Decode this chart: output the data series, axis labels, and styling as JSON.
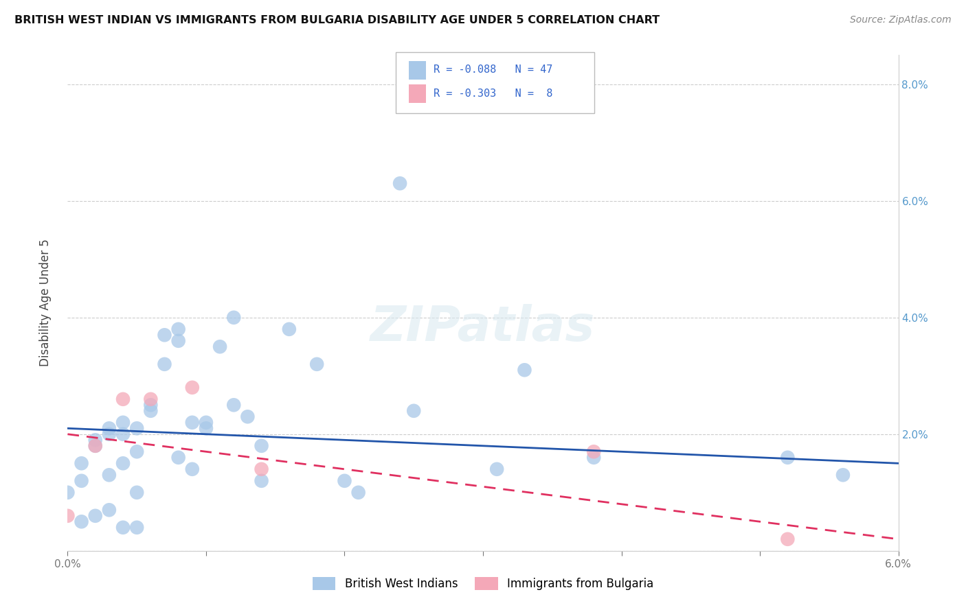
{
  "title": "BRITISH WEST INDIAN VS IMMIGRANTS FROM BULGARIA DISABILITY AGE UNDER 5 CORRELATION CHART",
  "source": "Source: ZipAtlas.com",
  "ylabel": "Disability Age Under 5",
  "legend_label1": "British West Indians",
  "legend_label2": "Immigrants from Bulgaria",
  "r1": "-0.088",
  "n1": "47",
  "r2": "-0.303",
  "n2": "8",
  "xlim": [
    0.0,
    0.06
  ],
  "ylim": [
    0.0,
    0.085
  ],
  "ytick_vals": [
    0.0,
    0.02,
    0.04,
    0.06,
    0.08
  ],
  "ytick_labels": [
    "",
    "2.0%",
    "4.0%",
    "6.0%",
    "8.0%"
  ],
  "blue_color": "#a8c8e8",
  "blue_line_color": "#2255aa",
  "pink_color": "#f4a8b8",
  "pink_line_color": "#e03060",
  "blue_x": [
    0.0,
    0.001,
    0.001,
    0.001,
    0.002,
    0.002,
    0.002,
    0.003,
    0.003,
    0.003,
    0.003,
    0.004,
    0.004,
    0.004,
    0.004,
    0.005,
    0.005,
    0.005,
    0.005,
    0.006,
    0.006,
    0.007,
    0.007,
    0.008,
    0.008,
    0.008,
    0.009,
    0.009,
    0.01,
    0.01,
    0.011,
    0.012,
    0.012,
    0.013,
    0.014,
    0.014,
    0.016,
    0.018,
    0.02,
    0.021,
    0.024,
    0.025,
    0.031,
    0.033,
    0.038,
    0.052,
    0.056
  ],
  "blue_y": [
    0.01,
    0.015,
    0.012,
    0.005,
    0.019,
    0.018,
    0.006,
    0.021,
    0.02,
    0.013,
    0.007,
    0.022,
    0.02,
    0.015,
    0.004,
    0.021,
    0.017,
    0.01,
    0.004,
    0.025,
    0.024,
    0.037,
    0.032,
    0.038,
    0.036,
    0.016,
    0.022,
    0.014,
    0.022,
    0.021,
    0.035,
    0.04,
    0.025,
    0.023,
    0.018,
    0.012,
    0.038,
    0.032,
    0.012,
    0.01,
    0.063,
    0.024,
    0.014,
    0.031,
    0.016,
    0.016,
    0.013
  ],
  "pink_x": [
    0.0,
    0.002,
    0.004,
    0.006,
    0.009,
    0.014,
    0.038,
    0.052
  ],
  "pink_y": [
    0.006,
    0.018,
    0.026,
    0.026,
    0.028,
    0.014,
    0.017,
    0.002
  ],
  "blue_trend_x": [
    0.0,
    0.06
  ],
  "blue_trend_y": [
    0.021,
    0.015
  ],
  "pink_trend_x": [
    0.0,
    0.06
  ],
  "pink_trend_y": [
    0.02,
    0.002
  ]
}
